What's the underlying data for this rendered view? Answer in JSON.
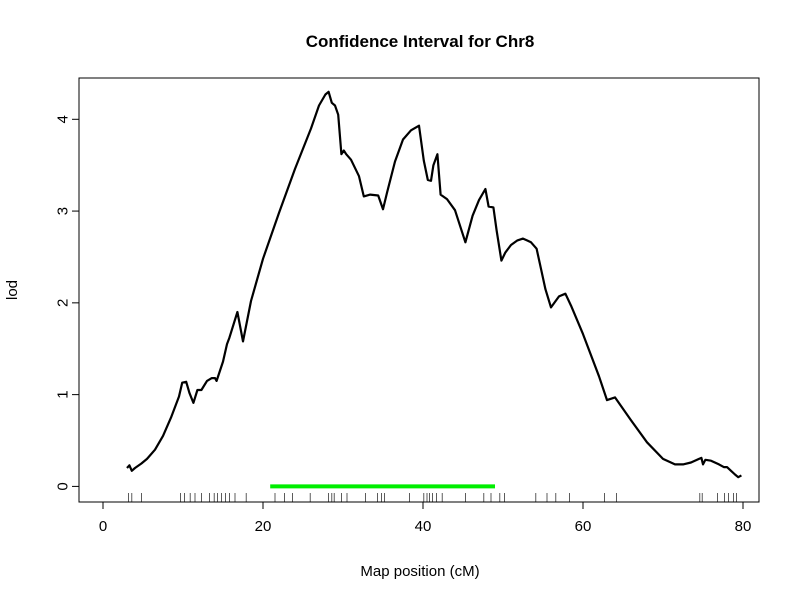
{
  "chart_data": {
    "type": "line",
    "title": "Confidence Interval for Chr8",
    "xlabel": "Map position (cM)",
    "ylabel": "lod",
    "xlim": [
      -3,
      82
    ],
    "ylim": [
      -0.17,
      4.45
    ],
    "x_ticks": [
      0,
      20,
      40,
      60,
      80
    ],
    "y_ticks": [
      0,
      1,
      2,
      3,
      4
    ],
    "grid": false,
    "series": [
      {
        "color": "#000000",
        "x": [
          3.0,
          3.3,
          3.6,
          4.0,
          4.8,
          5.5,
          6.5,
          7.5,
          8.5,
          9.5,
          9.9,
          10.4,
          10.8,
          11.3,
          11.8,
          12.3,
          13.0,
          13.6,
          14.0,
          14.2,
          15.0,
          15.5,
          15.8,
          16.8,
          17.5,
          18.5,
          20.0,
          22.0,
          24.0,
          26.0,
          27.0,
          27.8,
          28.2,
          28.6,
          29.0,
          29.4,
          29.8,
          30.1,
          30.4,
          31.0,
          32.0,
          32.6,
          33.4,
          34.4,
          35.0,
          35.5,
          36.5,
          37.5,
          38.5,
          39.5,
          40.1,
          40.6,
          41.0,
          41.3,
          41.8,
          42.2,
          43.0,
          44.0,
          45.3,
          46.2,
          47.0,
          47.8,
          48.2,
          48.8,
          49.2,
          49.8,
          50.3,
          51.0,
          51.8,
          52.5,
          53.0,
          53.5,
          54.2,
          54.8,
          55.3,
          56.0,
          57.0,
          57.8,
          58.5,
          60.0,
          62.0,
          63.0,
          64.0,
          66.0,
          68.0,
          70.0,
          71.5,
          72.5,
          73.5,
          74.5,
          74.8,
          75.0,
          75.3,
          76.0,
          77.0,
          77.6,
          78.0,
          78.5,
          79.0,
          79.4,
          79.8
        ],
        "y": [
          0.2,
          0.23,
          0.17,
          0.2,
          0.25,
          0.3,
          0.4,
          0.55,
          0.75,
          0.98,
          1.13,
          1.14,
          1.02,
          0.91,
          1.05,
          1.05,
          1.15,
          1.18,
          1.18,
          1.15,
          1.36,
          1.55,
          1.62,
          1.9,
          1.58,
          2.02,
          2.48,
          2.98,
          3.46,
          3.9,
          4.15,
          4.27,
          4.3,
          4.18,
          4.15,
          4.05,
          3.62,
          3.66,
          3.62,
          3.56,
          3.38,
          3.16,
          3.18,
          3.17,
          3.02,
          3.2,
          3.54,
          3.78,
          3.88,
          3.93,
          3.55,
          3.34,
          3.33,
          3.5,
          3.62,
          3.18,
          3.13,
          3.01,
          2.66,
          2.95,
          3.12,
          3.24,
          3.05,
          3.04,
          2.79,
          2.46,
          2.55,
          2.63,
          2.68,
          2.7,
          2.68,
          2.66,
          2.59,
          2.35,
          2.15,
          1.95,
          2.07,
          2.1,
          1.97,
          1.66,
          1.2,
          0.94,
          0.97,
          0.72,
          0.48,
          0.3,
          0.24,
          0.24,
          0.26,
          0.3,
          0.31,
          0.24,
          0.29,
          0.28,
          0.24,
          0.21,
          0.21,
          0.17,
          0.13,
          0.1,
          0.12
        ]
      }
    ],
    "interval": {
      "x_start": 20.9,
      "x_end": 49.0,
      "y": 0,
      "color": "#00ee00"
    },
    "markers": [
      3.2,
      3.6,
      4.8,
      9.7,
      10.2,
      10.9,
      11.5,
      12.3,
      13.3,
      13.9,
      14.3,
      14.8,
      15.3,
      15.8,
      16.5,
      17.9,
      21.5,
      22.7,
      23.7,
      25.9,
      28.2,
      28.6,
      28.9,
      29.8,
      30.5,
      32.8,
      34.3,
      34.8,
      35.2,
      38.3,
      40.1,
      40.5,
      40.8,
      41.2,
      41.7,
      42.4,
      45.3,
      47.6,
      48.5,
      49.6,
      50.2,
      54.1,
      55.5,
      56.6,
      58.3,
      62.7,
      64.2,
      74.6,
      74.9,
      76.8,
      77.7,
      78.2,
      78.8,
      79.2
    ]
  }
}
